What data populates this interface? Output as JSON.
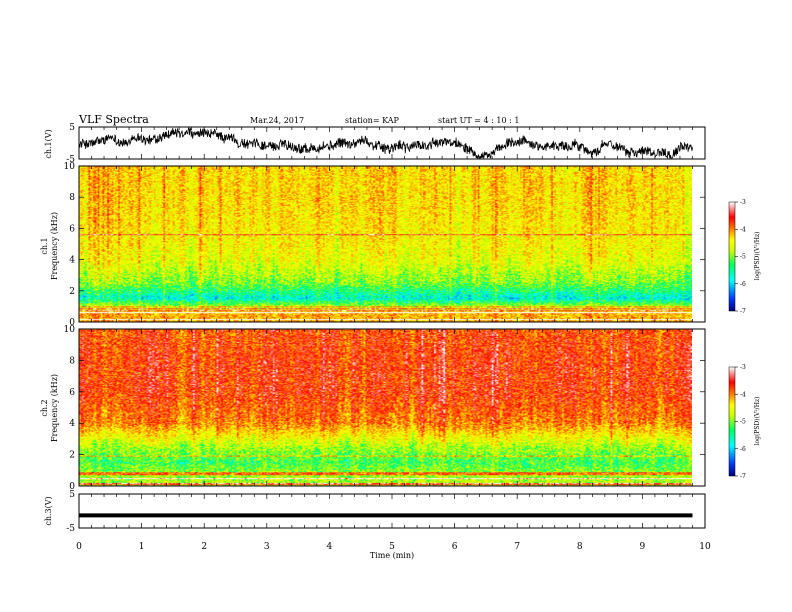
{
  "header": {
    "title": "VLF Spectra",
    "date": "Mar.24, 2017",
    "station": "station= KAP",
    "start": "start  UT =   4 : 10 : 1"
  },
  "chart_data": [
    {
      "type": "line",
      "panel": "ch1",
      "ylabel": "ch.1(V)",
      "ylim": [
        -5,
        5
      ],
      "yticks": [
        "5",
        "-5"
      ],
      "xlim": [
        0,
        9.8
      ],
      "description_values": {
        "mean": -0.3,
        "amplitude": 2.0
      }
    },
    {
      "type": "heatmap",
      "panel": "ch1-spectrogram",
      "ylabel_line1": "ch.1",
      "ylabel_line2": "Frequency (kHz)",
      "ylim": [
        0,
        10
      ],
      "yticks": [
        "0",
        "2",
        "4",
        "6",
        "8",
        "10"
      ],
      "colorbar": {
        "label": "log(PSD)(V²/Hz)",
        "range": [
          -7,
          -3
        ],
        "ticks": [
          "-3",
          "-4",
          "-5",
          "-6",
          "-7"
        ]
      },
      "level_profile": [
        {
          "f_khz": 0.5,
          "psd": -4.2
        },
        {
          "f_khz": 1.5,
          "psd": -5.9
        },
        {
          "f_khz": 2.5,
          "psd": -5.2
        },
        {
          "f_khz": 4.0,
          "psd": -4.7
        },
        {
          "f_khz": 6.0,
          "psd": -4.5
        },
        {
          "f_khz": 8.0,
          "psd": -4.4
        },
        {
          "f_khz": 10.0,
          "psd": -4.4
        }
      ]
    },
    {
      "type": "heatmap",
      "panel": "ch2-spectrogram",
      "ylabel_line1": "ch.2",
      "ylabel_line2": "Frequency (kHz)",
      "ylim": [
        0,
        10
      ],
      "yticks": [
        "0",
        "2",
        "4",
        "6",
        "8",
        "10"
      ],
      "colorbar": {
        "label": "log(PSD)(V²/Hz)",
        "range": [
          -7,
          -3
        ],
        "ticks": [
          "-3",
          "-4",
          "-5",
          "-6",
          "-7"
        ]
      },
      "level_profile": [
        {
          "f_khz": 0.5,
          "psd": -5.0
        },
        {
          "f_khz": 1.5,
          "psd": -5.4
        },
        {
          "f_khz": 2.5,
          "psd": -5.0
        },
        {
          "f_khz": 4.0,
          "psd": -4.0
        },
        {
          "f_khz": 6.0,
          "psd": -3.7
        },
        {
          "f_khz": 8.0,
          "psd": -3.7
        },
        {
          "f_khz": 10.0,
          "psd": -3.8
        }
      ]
    },
    {
      "type": "line",
      "panel": "ch3",
      "ylabel": "ch.3(V)",
      "ylim": [
        -5,
        5
      ],
      "yticks": [
        "5",
        "-5"
      ],
      "xlim": [
        0,
        9.8
      ],
      "constant_value": -1.3
    }
  ],
  "xaxis": {
    "label": "Time (min)",
    "range": [
      0,
      10
    ],
    "ticks": [
      "0",
      "1",
      "2",
      "3",
      "4",
      "5",
      "6",
      "7",
      "8",
      "9",
      "10"
    ]
  },
  "colors": {
    "trace": "#000000",
    "colormap": [
      "#000080",
      "#0050ff",
      "#00ffff",
      "#00ff60",
      "#c8ff00",
      "#ffff00",
      "#ff8000",
      "#ff0000",
      "#ffffff"
    ]
  }
}
